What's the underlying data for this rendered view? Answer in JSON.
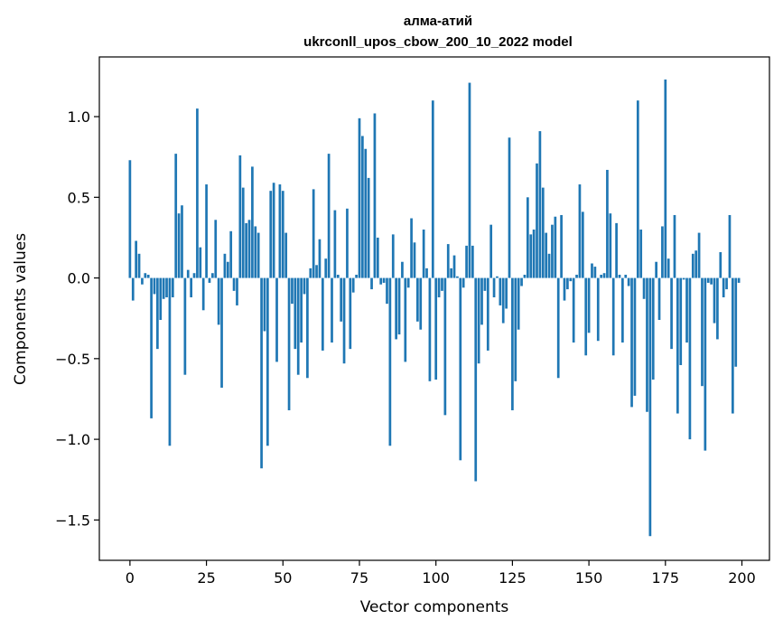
{
  "chart_data": {
    "type": "bar",
    "title_line1": "алма-атий",
    "title_line2": "ukrconll_upos_cbow_200_10_2022 model",
    "xlabel": "Vector components",
    "ylabel": "Components values",
    "xlim": [
      -10,
      209
    ],
    "ylim": [
      -1.75,
      1.37
    ],
    "xticks": [
      0,
      25,
      50,
      75,
      100,
      125,
      150,
      175,
      200
    ],
    "yticks": [
      -1.5,
      -1.0,
      -0.5,
      0.0,
      0.5,
      1.0
    ],
    "ytick_labels": [
      "−1.5",
      "−1.0",
      "−0.5",
      "0.0",
      "0.5",
      "1.0"
    ],
    "bar_color": "#1f77b4",
    "grid": false,
    "values": [
      0.73,
      -0.14,
      0.23,
      0.15,
      -0.04,
      0.03,
      0.02,
      -0.87,
      -0.1,
      -0.44,
      -0.26,
      -0.13,
      -0.12,
      -1.04,
      -0.12,
      0.77,
      0.4,
      0.45,
      -0.6,
      0.05,
      -0.12,
      0.03,
      1.05,
      0.19,
      -0.2,
      0.58,
      -0.03,
      0.03,
      0.36,
      -0.29,
      -0.68,
      0.15,
      0.1,
      0.29,
      -0.08,
      -0.17,
      0.76,
      0.56,
      0.34,
      0.36,
      0.69,
      0.32,
      0.28,
      -1.18,
      -0.33,
      -1.04,
      0.54,
      0.59,
      -0.52,
      0.58,
      0.54,
      0.28,
      -0.82,
      -0.16,
      -0.44,
      -0.6,
      -0.4,
      -0.1,
      -0.62,
      0.06,
      0.55,
      0.08,
      0.24,
      -0.45,
      0.12,
      0.77,
      -0.4,
      0.42,
      0.02,
      -0.27,
      -0.53,
      0.43,
      -0.44,
      -0.09,
      0.02,
      0.99,
      0.88,
      0.8,
      0.62,
      -0.07,
      1.02,
      0.25,
      -0.04,
      -0.03,
      -0.16,
      -1.04,
      0.27,
      -0.38,
      -0.35,
      0.1,
      -0.52,
      -0.06,
      0.37,
      0.22,
      -0.27,
      -0.32,
      0.3,
      0.06,
      -0.64,
      1.1,
      -0.63,
      -0.12,
      -0.08,
      -0.85,
      0.21,
      0.06,
      0.14,
      0.01,
      -1.13,
      -0.06,
      0.2,
      1.21,
      0.2,
      -1.26,
      -0.53,
      -0.29,
      -0.08,
      -0.45,
      0.33,
      -0.12,
      0.01,
      -0.17,
      -0.28,
      -0.19,
      0.87,
      -0.82,
      -0.64,
      -0.32,
      -0.05,
      0.02,
      0.5,
      0.27,
      0.3,
      0.71,
      0.91,
      0.56,
      0.28,
      0.15,
      0.33,
      0.38,
      -0.62,
      0.39,
      -0.14,
      -0.07,
      -0.02,
      -0.4,
      0.02,
      0.58,
      0.41,
      -0.48,
      -0.34,
      0.09,
      0.07,
      -0.39,
      0.02,
      0.03,
      0.67,
      0.4,
      -0.48,
      0.34,
      0.02,
      -0.4,
      0.02,
      -0.05,
      -0.8,
      -0.73,
      1.1,
      0.3,
      -0.13,
      -0.83,
      -1.6,
      -0.63,
      0.1,
      -0.26,
      0.32,
      1.23,
      0.12,
      -0.44,
      0.39,
      -0.84,
      -0.54,
      -0.01,
      -0.4,
      -1.0,
      0.15,
      0.17,
      0.28,
      -0.67,
      -1.07,
      -0.03,
      -0.04,
      -0.28,
      -0.38,
      0.16,
      -0.12,
      -0.07,
      0.39,
      -0.84,
      -0.55,
      -0.03
    ],
    "values_comment_removed": true
  }
}
